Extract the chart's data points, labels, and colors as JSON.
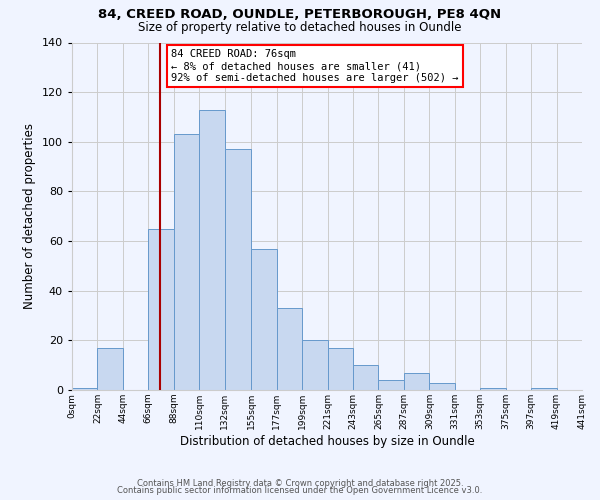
{
  "title1": "84, CREED ROAD, OUNDLE, PETERBOROUGH, PE8 4QN",
  "title2": "Size of property relative to detached houses in Oundle",
  "xlabel": "Distribution of detached houses by size in Oundle",
  "ylabel": "Number of detached properties",
  "bin_edges": [
    0,
    22,
    44,
    66,
    88,
    110,
    132,
    155,
    177,
    199,
    221,
    243,
    265,
    287,
    309,
    331,
    353,
    375,
    397,
    419,
    441
  ],
  "bin_labels": [
    "0sqm",
    "22sqm",
    "44sqm",
    "66sqm",
    "88sqm",
    "110sqm",
    "132sqm",
    "155sqm",
    "177sqm",
    "199sqm",
    "221sqm",
    "243sqm",
    "265sqm",
    "287sqm",
    "309sqm",
    "331sqm",
    "353sqm",
    "375sqm",
    "397sqm",
    "419sqm",
    "441sqm"
  ],
  "counts": [
    1,
    17,
    0,
    65,
    103,
    113,
    97,
    57,
    33,
    20,
    17,
    10,
    4,
    7,
    3,
    0,
    1,
    0,
    1,
    0
  ],
  "bar_facecolor": "#c8d8f0",
  "bar_edgecolor": "#6699cc",
  "vline_x": 76,
  "vline_color": "#aa0000",
  "ylim": [
    0,
    140
  ],
  "yticks": [
    0,
    20,
    40,
    60,
    80,
    100,
    120,
    140
  ],
  "annotation_title": "84 CREED ROAD: 76sqm",
  "annotation_line1": "← 8% of detached houses are smaller (41)",
  "annotation_line2": "92% of semi-detached houses are larger (502) →",
  "footer1": "Contains HM Land Registry data © Crown copyright and database right 2025.",
  "footer2": "Contains public sector information licensed under the Open Government Licence v3.0.",
  "background_color": "#f0f4ff",
  "grid_color": "#cccccc"
}
